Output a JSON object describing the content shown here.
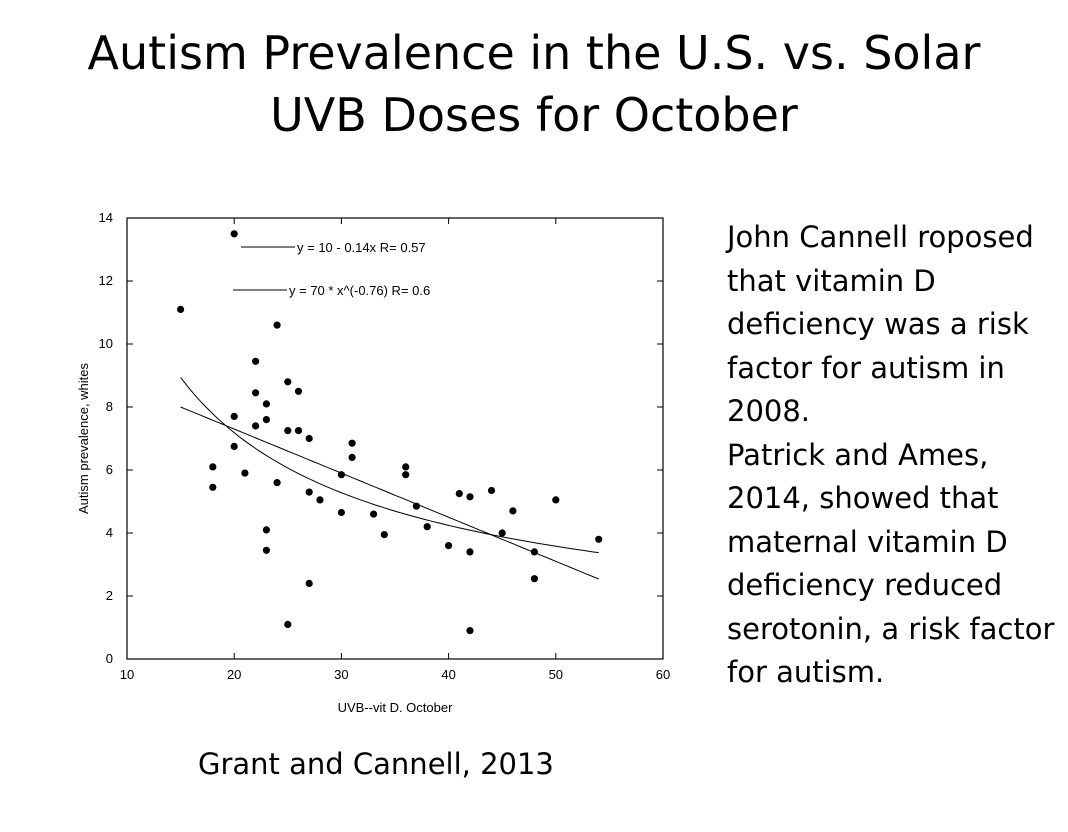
{
  "slide": {
    "title_line1": "Autism Prevalence in the U.S. vs. Solar",
    "title_line2": "UVB Doses for October",
    "text_para1": "John Cannell roposed that vitamin D deficiency was a risk factor for autism in 2008.",
    "text_para2": "Patrick and Ames, 2014, showed that maternal vitamin D deficiency reduced serotonin, a risk factor for autism.",
    "citation": "Grant and Cannell, 2013"
  },
  "chart_data": {
    "type": "scatter",
    "title": "",
    "xlabel": "UVB--vit D. October",
    "ylabel": "Autism prevalence, whites",
    "xlim": [
      10,
      60
    ],
    "ylim": [
      0,
      14
    ],
    "xticks": [
      10,
      20,
      30,
      40,
      50,
      60
    ],
    "yticks": [
      0,
      2,
      4,
      6,
      8,
      10,
      12,
      14
    ],
    "grid": false,
    "points": [
      {
        "x": 15,
        "y": 11.1
      },
      {
        "x": 18,
        "y": 6.1
      },
      {
        "x": 18,
        "y": 5.45
      },
      {
        "x": 20,
        "y": 13.5
      },
      {
        "x": 20,
        "y": 7.7
      },
      {
        "x": 20,
        "y": 6.75
      },
      {
        "x": 21,
        "y": 5.9
      },
      {
        "x": 22,
        "y": 9.45
      },
      {
        "x": 22,
        "y": 8.45
      },
      {
        "x": 22,
        "y": 7.4
      },
      {
        "x": 23,
        "y": 8.1
      },
      {
        "x": 23,
        "y": 7.6
      },
      {
        "x": 23,
        "y": 4.1
      },
      {
        "x": 23,
        "y": 3.45
      },
      {
        "x": 24,
        "y": 10.6
      },
      {
        "x": 24,
        "y": 5.6
      },
      {
        "x": 25,
        "y": 8.8
      },
      {
        "x": 25,
        "y": 7.25
      },
      {
        "x": 25,
        "y": 1.1
      },
      {
        "x": 26,
        "y": 8.5
      },
      {
        "x": 26,
        "y": 7.25
      },
      {
        "x": 27,
        "y": 7.0
      },
      {
        "x": 27,
        "y": 5.3
      },
      {
        "x": 27,
        "y": 2.4
      },
      {
        "x": 28,
        "y": 5.05
      },
      {
        "x": 30,
        "y": 5.85
      },
      {
        "x": 30,
        "y": 4.65
      },
      {
        "x": 31,
        "y": 6.85
      },
      {
        "x": 31,
        "y": 6.4
      },
      {
        "x": 33,
        "y": 4.6
      },
      {
        "x": 34,
        "y": 3.95
      },
      {
        "x": 36,
        "y": 6.1
      },
      {
        "x": 36,
        "y": 5.85
      },
      {
        "x": 37,
        "y": 4.85
      },
      {
        "x": 38,
        "y": 4.2
      },
      {
        "x": 40,
        "y": 3.6
      },
      {
        "x": 41,
        "y": 5.25
      },
      {
        "x": 42,
        "y": 5.15
      },
      {
        "x": 42,
        "y": 3.4
      },
      {
        "x": 42,
        "y": 0.9
      },
      {
        "x": 44,
        "y": 5.35
      },
      {
        "x": 45,
        "y": 4.0
      },
      {
        "x": 46,
        "y": 4.7
      },
      {
        "x": 48,
        "y": 3.4
      },
      {
        "x": 48,
        "y": 2.55
      },
      {
        "x": 50,
        "y": 5.05
      },
      {
        "x": 54,
        "y": 3.8
      }
    ],
    "fits": [
      {
        "name": "linear",
        "label": "y = 10 - 0.14x   R= 0.57",
        "a": 10.1,
        "b": -0.14,
        "form": "linear",
        "x_range": [
          15,
          54
        ]
      },
      {
        "name": "power",
        "label": "y = 70 * x^(-0.76)   R= 0.6",
        "a": 70,
        "b": -0.76,
        "form": "power",
        "x_range": [
          15,
          54
        ]
      }
    ]
  }
}
